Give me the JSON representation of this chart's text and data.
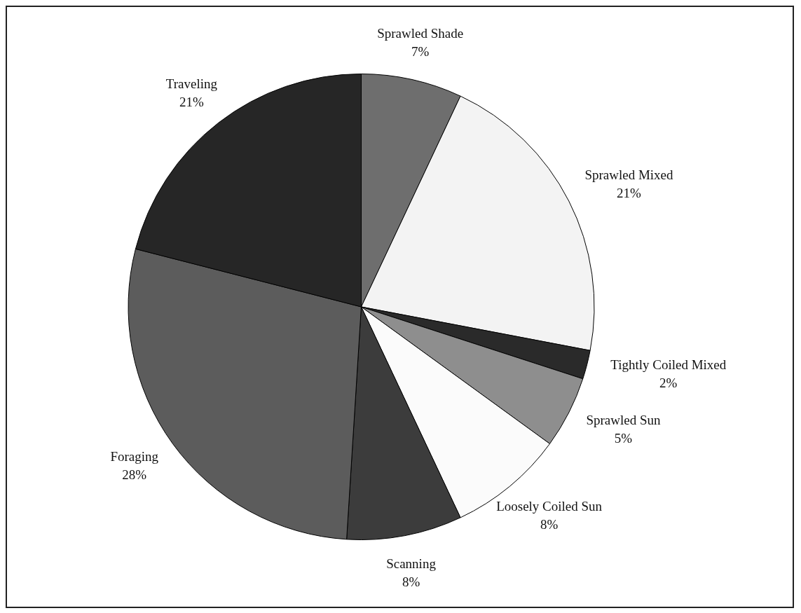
{
  "chart_data": {
    "type": "pie",
    "categories": [
      "Sprawled Shade",
      "Sprawled Mixed",
      "Tightly Coiled Mixed",
      "Sprawled Sun",
      "Loosely Coiled Sun",
      "Scanning",
      "Foraging",
      "Traveling"
    ],
    "values": [
      7,
      21,
      2,
      5,
      8,
      8,
      28,
      21
    ],
    "value_labels": [
      "7%",
      "21%",
      "2%",
      "5%",
      "8%",
      "8%",
      "28%",
      "21%"
    ],
    "colors": [
      "#6e6e6e",
      "#f3f3f3",
      "#2a2a2a",
      "#8e8e8e",
      "#fbfbfb",
      "#3c3c3c",
      "#5c5c5c",
      "#262626"
    ],
    "legend": false
  }
}
